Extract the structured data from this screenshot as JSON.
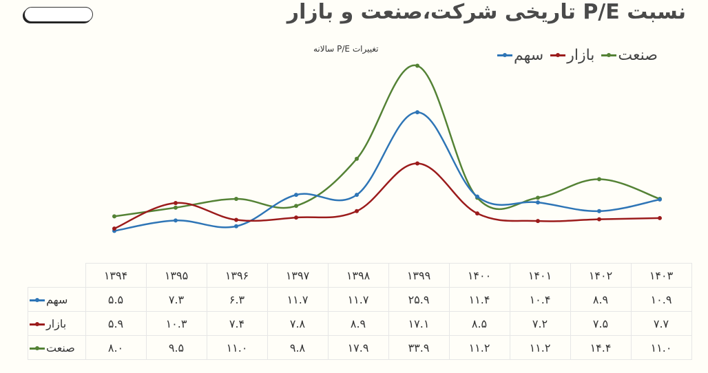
{
  "header": {
    "title": "نسبت P/E تاریخی شرکت،صنعت و بازار",
    "subtitle": "تغییرات P/E سالانه"
  },
  "legend": [
    {
      "label": "صنعت",
      "color": "#548235"
    },
    {
      "label": "بازار",
      "color": "#9b1b1b"
    },
    {
      "label": "سهم",
      "color": "#2e75b6"
    }
  ],
  "table": {
    "years": [
      "۱۳۹۴",
      "۱۳۹۵",
      "۱۳۹۶",
      "۱۳۹۷",
      "۱۳۹۸",
      "۱۳۹۹",
      "۱۴۰۰",
      "۱۴۰۱",
      "۱۴۰۲",
      "۱۴۰۳"
    ],
    "rows": [
      {
        "label": "سهم",
        "color": "#2e75b6",
        "cells": [
          "۵.۵",
          "۷.۳",
          "۶.۳",
          "۱۱.۷",
          "۱۱.۷",
          "۲۵.۹",
          "۱۱.۴",
          "۱۰.۴",
          "۸.۹",
          "۱۰.۹"
        ]
      },
      {
        "label": "بازار",
        "color": "#9b1b1b",
        "cells": [
          "۵.۹",
          "۱۰.۳",
          "۷.۴",
          "۷.۸",
          "۸.۹",
          "۱۷.۱",
          "۸.۵",
          "۷.۲",
          "۷.۵",
          "۷.۷"
        ]
      },
      {
        "label": "صنعت",
        "color": "#548235",
        "cells": [
          "۸.۰",
          "۹.۵",
          "۱۱.۰",
          "۹.۸",
          "۱۷.۹",
          "۳۳.۹",
          "۱۱.۲",
          "۱۱.۲",
          "۱۴.۴",
          "۱۱.۰"
        ]
      }
    ]
  },
  "chart_data": {
    "type": "line",
    "title": "نسبت P/E تاریخی شرکت،صنعت و بازار",
    "subtitle": "تغییرات P/E سالانه",
    "categories": [
      "1394",
      "1395",
      "1396",
      "1397",
      "1398",
      "1399",
      "1400",
      "1401",
      "1402",
      "1403"
    ],
    "series": [
      {
        "name": "سهم",
        "color": "#2e75b6",
        "values": [
          5.5,
          7.3,
          6.3,
          11.7,
          11.7,
          25.9,
          11.4,
          10.4,
          8.9,
          10.9
        ]
      },
      {
        "name": "بازار",
        "color": "#9b1b1b",
        "values": [
          5.9,
          10.3,
          7.4,
          7.8,
          8.9,
          17.1,
          8.5,
          7.2,
          7.5,
          7.7
        ]
      },
      {
        "name": "صنعت",
        "color": "#548235",
        "values": [
          8.0,
          9.5,
          11.0,
          9.8,
          17.9,
          33.9,
          11.2,
          11.2,
          14.4,
          11.0
        ]
      }
    ],
    "xlabel": "",
    "ylabel": "",
    "grid": false,
    "legend_position": "top-right",
    "smooth": true,
    "data_table": true
  }
}
